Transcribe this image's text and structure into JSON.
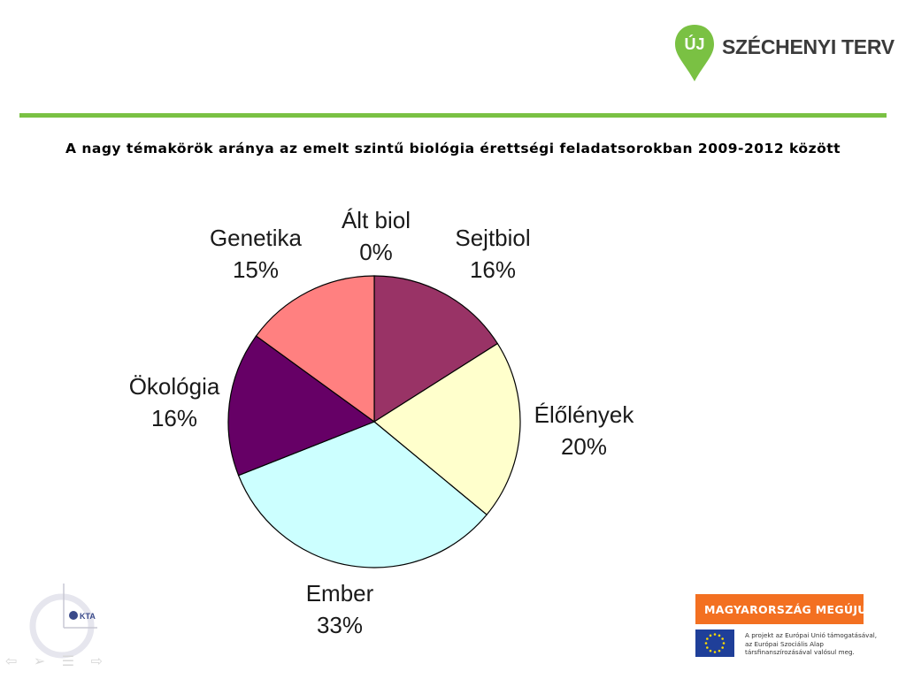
{
  "header": {
    "logo": {
      "badge_text": "ÚJ",
      "name": "SZÉCHENYI TERV",
      "color": "#7ac143"
    }
  },
  "chart_data": {
    "type": "pie",
    "title": "A nagy témakörök aránya az emelt szintű biológia érettségi feladatsorokban 2009-2012 között",
    "slices": [
      {
        "label": "Ált biol",
        "value": 0,
        "percent_label": "0%",
        "color": "#ffffff"
      },
      {
        "label": "Sejtbiol",
        "value": 16,
        "percent_label": "16%",
        "color": "#993366"
      },
      {
        "label": "Élőlények",
        "value": 20,
        "percent_label": "20%",
        "color": "#ffffcc"
      },
      {
        "label": "Ember",
        "value": 33,
        "percent_label": "33%",
        "color": "#ccffff"
      },
      {
        "label": "Ökológia",
        "value": 16,
        "percent_label": "16%",
        "color": "#660066"
      },
      {
        "label": "Genetika",
        "value": 15,
        "percent_label": "15%",
        "color": "#ff8080"
      }
    ],
    "start_angle": "12 o'clock",
    "direction": "clockwise",
    "legend": "none",
    "data_labels": "outside"
  },
  "footer": {
    "kta_logo_text": "KTA",
    "nav_icons": [
      "prev-arrow-icon",
      "next-arrow-icon",
      "menu-icon",
      "return-arrow-icon"
    ],
    "badge": {
      "text": "MAGYARORSZÁG MEGÚJUL",
      "color": "#f37021"
    },
    "flag_colors": [
      "#cd2a3e",
      "#ffffff",
      "#436f4d"
    ],
    "eu": {
      "line1": "A projekt az Európai Unió támogatásával,",
      "line2": "az Európai Szociális Alap",
      "line3": "társfinanszírozásával valósul meg."
    }
  }
}
